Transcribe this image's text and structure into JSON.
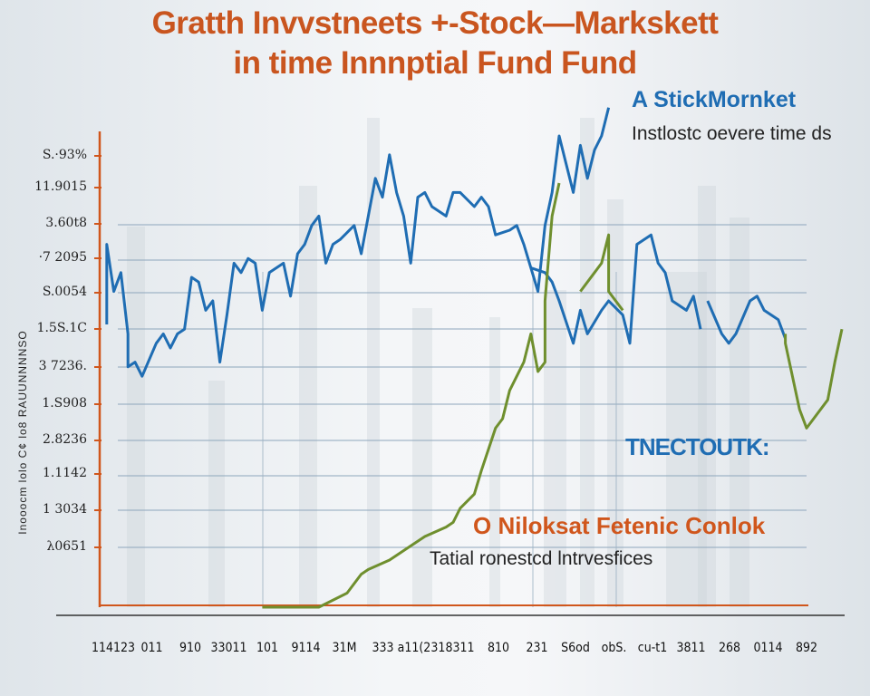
{
  "chart_data": {
    "type": "line",
    "title": "Gratth Invvstneets +-Stock—Markskett",
    "subtitle": "in time  Innnptial Fund Fund",
    "ylabel": "Inooocm lolo C¢ lo8 RAUUNNNNSO",
    "xlabel": "",
    "y_tick_labels": [
      "S.·93%",
      "11.9015",
      "3.60t8",
      "·7 2095",
      "S.0054",
      "1.5S.1C",
      "3 7236.",
      "1.S908",
      "2.8236",
      "1.1142",
      "1 3034",
      "λ0651"
    ],
    "x_tick_labels": [
      "114123",
      "011",
      "910",
      "33011",
      "101",
      "9114",
      "31M",
      "333",
      "a11(231",
      "8311",
      "810",
      "231",
      "S6od",
      "obS.",
      "cu-t1",
      "3811",
      "268",
      "0114",
      "892"
    ],
    "xlim": [
      0,
      106
    ],
    "ylim": [
      0,
      100
    ],
    "grid": true,
    "colors": {
      "stock": "#1f6db3",
      "fund": "#6f8f2e",
      "axis": "#d0561c",
      "title": "#c9551f"
    },
    "annotations": {
      "stock_title": "A StickMornket",
      "stock_sub": "Instlostc oevere time ds",
      "stock_tag": "TNECTOUTK:",
      "fund_title": "O Niloksat Fetenic Conlok",
      "fund_sub": "Tatial ronestcd lntrvesfices"
    },
    "series": [
      {
        "color": "#1f6db3",
        "segments": [
          [
            [
              1,
              60
            ],
            [
              1,
              77
            ],
            [
              2,
              67
            ],
            [
              3,
              71
            ],
            [
              4,
              58
            ],
            [
              4,
              51
            ],
            [
              5,
              52
            ],
            [
              6,
              49
            ],
            [
              8,
              56
            ],
            [
              9,
              58
            ],
            [
              10,
              55
            ],
            [
              11,
              58
            ],
            [
              12,
              59
            ],
            [
              13,
              70
            ],
            [
              14,
              69
            ],
            [
              15,
              63
            ],
            [
              16,
              65
            ],
            [
              17,
              52
            ],
            [
              18,
              62
            ],
            [
              19,
              73
            ],
            [
              20,
              71
            ],
            [
              21,
              74
            ],
            [
              22,
              73
            ],
            [
              23,
              63
            ],
            [
              24,
              71
            ],
            [
              26,
              73
            ],
            [
              27,
              66
            ],
            [
              28,
              75
            ],
            [
              29,
              77
            ],
            [
              30,
              81
            ],
            [
              31,
              83
            ],
            [
              32,
              73
            ],
            [
              33,
              77
            ],
            [
              34,
              78
            ],
            [
              36,
              81
            ],
            [
              37,
              75
            ],
            [
              38,
              83
            ],
            [
              39,
              91
            ],
            [
              40,
              87
            ],
            [
              41,
              96
            ],
            [
              42,
              88
            ],
            [
              43,
              83
            ],
            [
              44,
              73
            ],
            [
              45,
              87
            ],
            [
              46,
              88
            ],
            [
              47,
              85
            ],
            [
              49,
              83
            ],
            [
              50,
              88
            ],
            [
              51,
              88
            ],
            [
              53,
              85
            ],
            [
              54,
              87
            ],
            [
              55,
              85
            ],
            [
              56,
              79
            ],
            [
              58,
              80
            ],
            [
              59,
              81
            ],
            [
              60,
              77
            ],
            [
              61,
              72
            ],
            [
              62,
              67
            ],
            [
              63,
              81
            ],
            [
              64,
              88
            ],
            [
              65,
              100
            ],
            [
              66,
              94
            ],
            [
              67,
              88
            ],
            [
              68,
              98
            ],
            [
              69,
              91
            ],
            [
              70,
              97
            ],
            [
              71,
              100
            ],
            [
              72,
              106
            ]
          ],
          [
            [
              61,
              72
            ],
            [
              63,
              71
            ],
            [
              64,
              69
            ],
            [
              65,
              65
            ],
            [
              67,
              56
            ],
            [
              68,
              63
            ],
            [
              69,
              58
            ],
            [
              71,
              63
            ],
            [
              72,
              65
            ],
            [
              74,
              62
            ],
            [
              75,
              56
            ],
            [
              76,
              77
            ],
            [
              78,
              79
            ],
            [
              79,
              73
            ],
            [
              80,
              71
            ],
            [
              81,
              65
            ],
            [
              83,
              63
            ],
            [
              84,
              66
            ],
            [
              85,
              59
            ]
          ],
          [
            [
              86,
              65
            ],
            [
              88,
              58
            ],
            [
              89,
              56
            ],
            [
              90,
              58
            ],
            [
              92,
              65
            ],
            [
              93,
              66
            ],
            [
              94,
              63
            ],
            [
              96,
              61
            ],
            [
              97,
              57
            ]
          ]
        ]
      },
      {
        "color": "#6f8f2e",
        "segments": [
          [
            [
              23,
              0
            ],
            [
              24,
              0
            ],
            [
              28,
              0
            ],
            [
              31,
              0
            ],
            [
              35,
              3
            ],
            [
              37,
              7
            ],
            [
              38,
              8
            ],
            [
              41,
              10
            ],
            [
              44,
              13
            ],
            [
              46,
              15
            ],
            [
              49,
              17
            ],
            [
              50,
              18
            ],
            [
              51,
              21
            ],
            [
              53,
              24
            ],
            [
              54,
              29
            ],
            [
              56,
              38
            ],
            [
              57,
              40
            ],
            [
              58,
              46
            ],
            [
              60,
              52
            ],
            [
              61,
              58
            ],
            [
              62,
              50
            ],
            [
              63,
              52
            ],
            [
              63,
              65
            ],
            [
              64,
              83
            ],
            [
              65,
              90
            ]
          ],
          [
            [
              68,
              67
            ],
            [
              70,
              71
            ],
            [
              71,
              73
            ],
            [
              72,
              79
            ],
            [
              72,
              67
            ],
            [
              74,
              63
            ]
          ],
          [
            [
              97,
              58
            ],
            [
              97,
              56
            ],
            [
              99,
              42
            ],
            [
              100,
              38
            ],
            [
              101,
              40
            ],
            [
              103,
              44
            ],
            [
              104,
              52
            ],
            [
              105,
              59
            ]
          ]
        ]
      }
    ]
  }
}
